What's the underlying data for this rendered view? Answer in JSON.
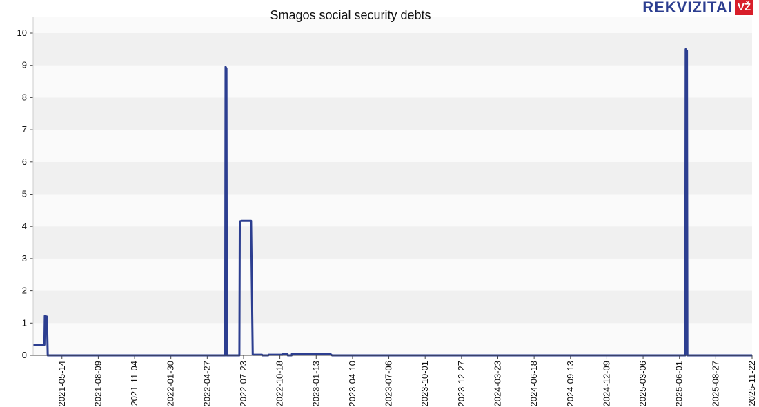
{
  "brand": {
    "wordmark": "REKVIZITAI",
    "badge": "VŽ"
  },
  "chart_data": {
    "type": "line",
    "title": "Smagos social security debts",
    "xlabel": "",
    "ylabel": "",
    "ylim": [
      0,
      10
    ],
    "y_ticks": [
      0,
      1,
      2,
      3,
      4,
      5,
      6,
      7,
      8,
      9,
      10
    ],
    "x_tick_labels": [
      "2021-05-14",
      "2021-08-09",
      "2021-11-04",
      "2022-01-30",
      "2022-04-27",
      "2022-07-23",
      "2022-10-18",
      "2023-01-13",
      "2023-04-10",
      "2023-07-06",
      "2023-10-01",
      "2023-12-27",
      "2024-03-23",
      "2024-06-18",
      "2024-09-13",
      "2024-12-09",
      "2025-03-06",
      "2025-06-01",
      "2025-08-27",
      "2025-11-22"
    ],
    "x_range": [
      "2021-03-06",
      "2025-11-22"
    ],
    "grid": "horizontal bands",
    "series_color": "#2c3e90",
    "series": [
      {
        "values": [
          [
            "2021-03-06",
            0.33
          ],
          [
            "2021-04-02",
            0.33
          ],
          [
            "2021-04-03",
            1.22
          ],
          [
            "2021-04-08",
            1.2
          ],
          [
            "2021-04-10",
            0.0
          ],
          [
            "2022-06-09",
            0.0
          ],
          [
            "2022-06-10",
            8.95
          ],
          [
            "2022-06-12",
            8.9
          ],
          [
            "2022-06-13",
            0.0
          ],
          [
            "2022-07-13",
            0.0
          ],
          [
            "2022-07-14",
            4.15
          ],
          [
            "2022-07-18",
            4.17
          ],
          [
            "2022-08-10",
            4.17
          ],
          [
            "2022-08-14",
            0.02
          ],
          [
            "2022-09-05",
            0.02
          ],
          [
            "2022-09-06",
            0.0
          ],
          [
            "2022-09-20",
            0.0
          ],
          [
            "2022-09-21",
            0.02
          ],
          [
            "2022-10-25",
            0.02
          ],
          [
            "2022-10-26",
            0.05
          ],
          [
            "2022-11-05",
            0.05
          ],
          [
            "2022-11-06",
            0.0
          ],
          [
            "2022-11-15",
            0.0
          ],
          [
            "2022-11-16",
            0.05
          ],
          [
            "2023-02-15",
            0.05
          ],
          [
            "2023-02-20",
            0.0
          ],
          [
            "2025-06-15",
            0.0
          ],
          [
            "2025-06-16",
            9.5
          ],
          [
            "2025-06-19",
            9.45
          ],
          [
            "2025-06-20",
            0.0
          ],
          [
            "2025-11-22",
            0.0
          ]
        ]
      }
    ]
  }
}
